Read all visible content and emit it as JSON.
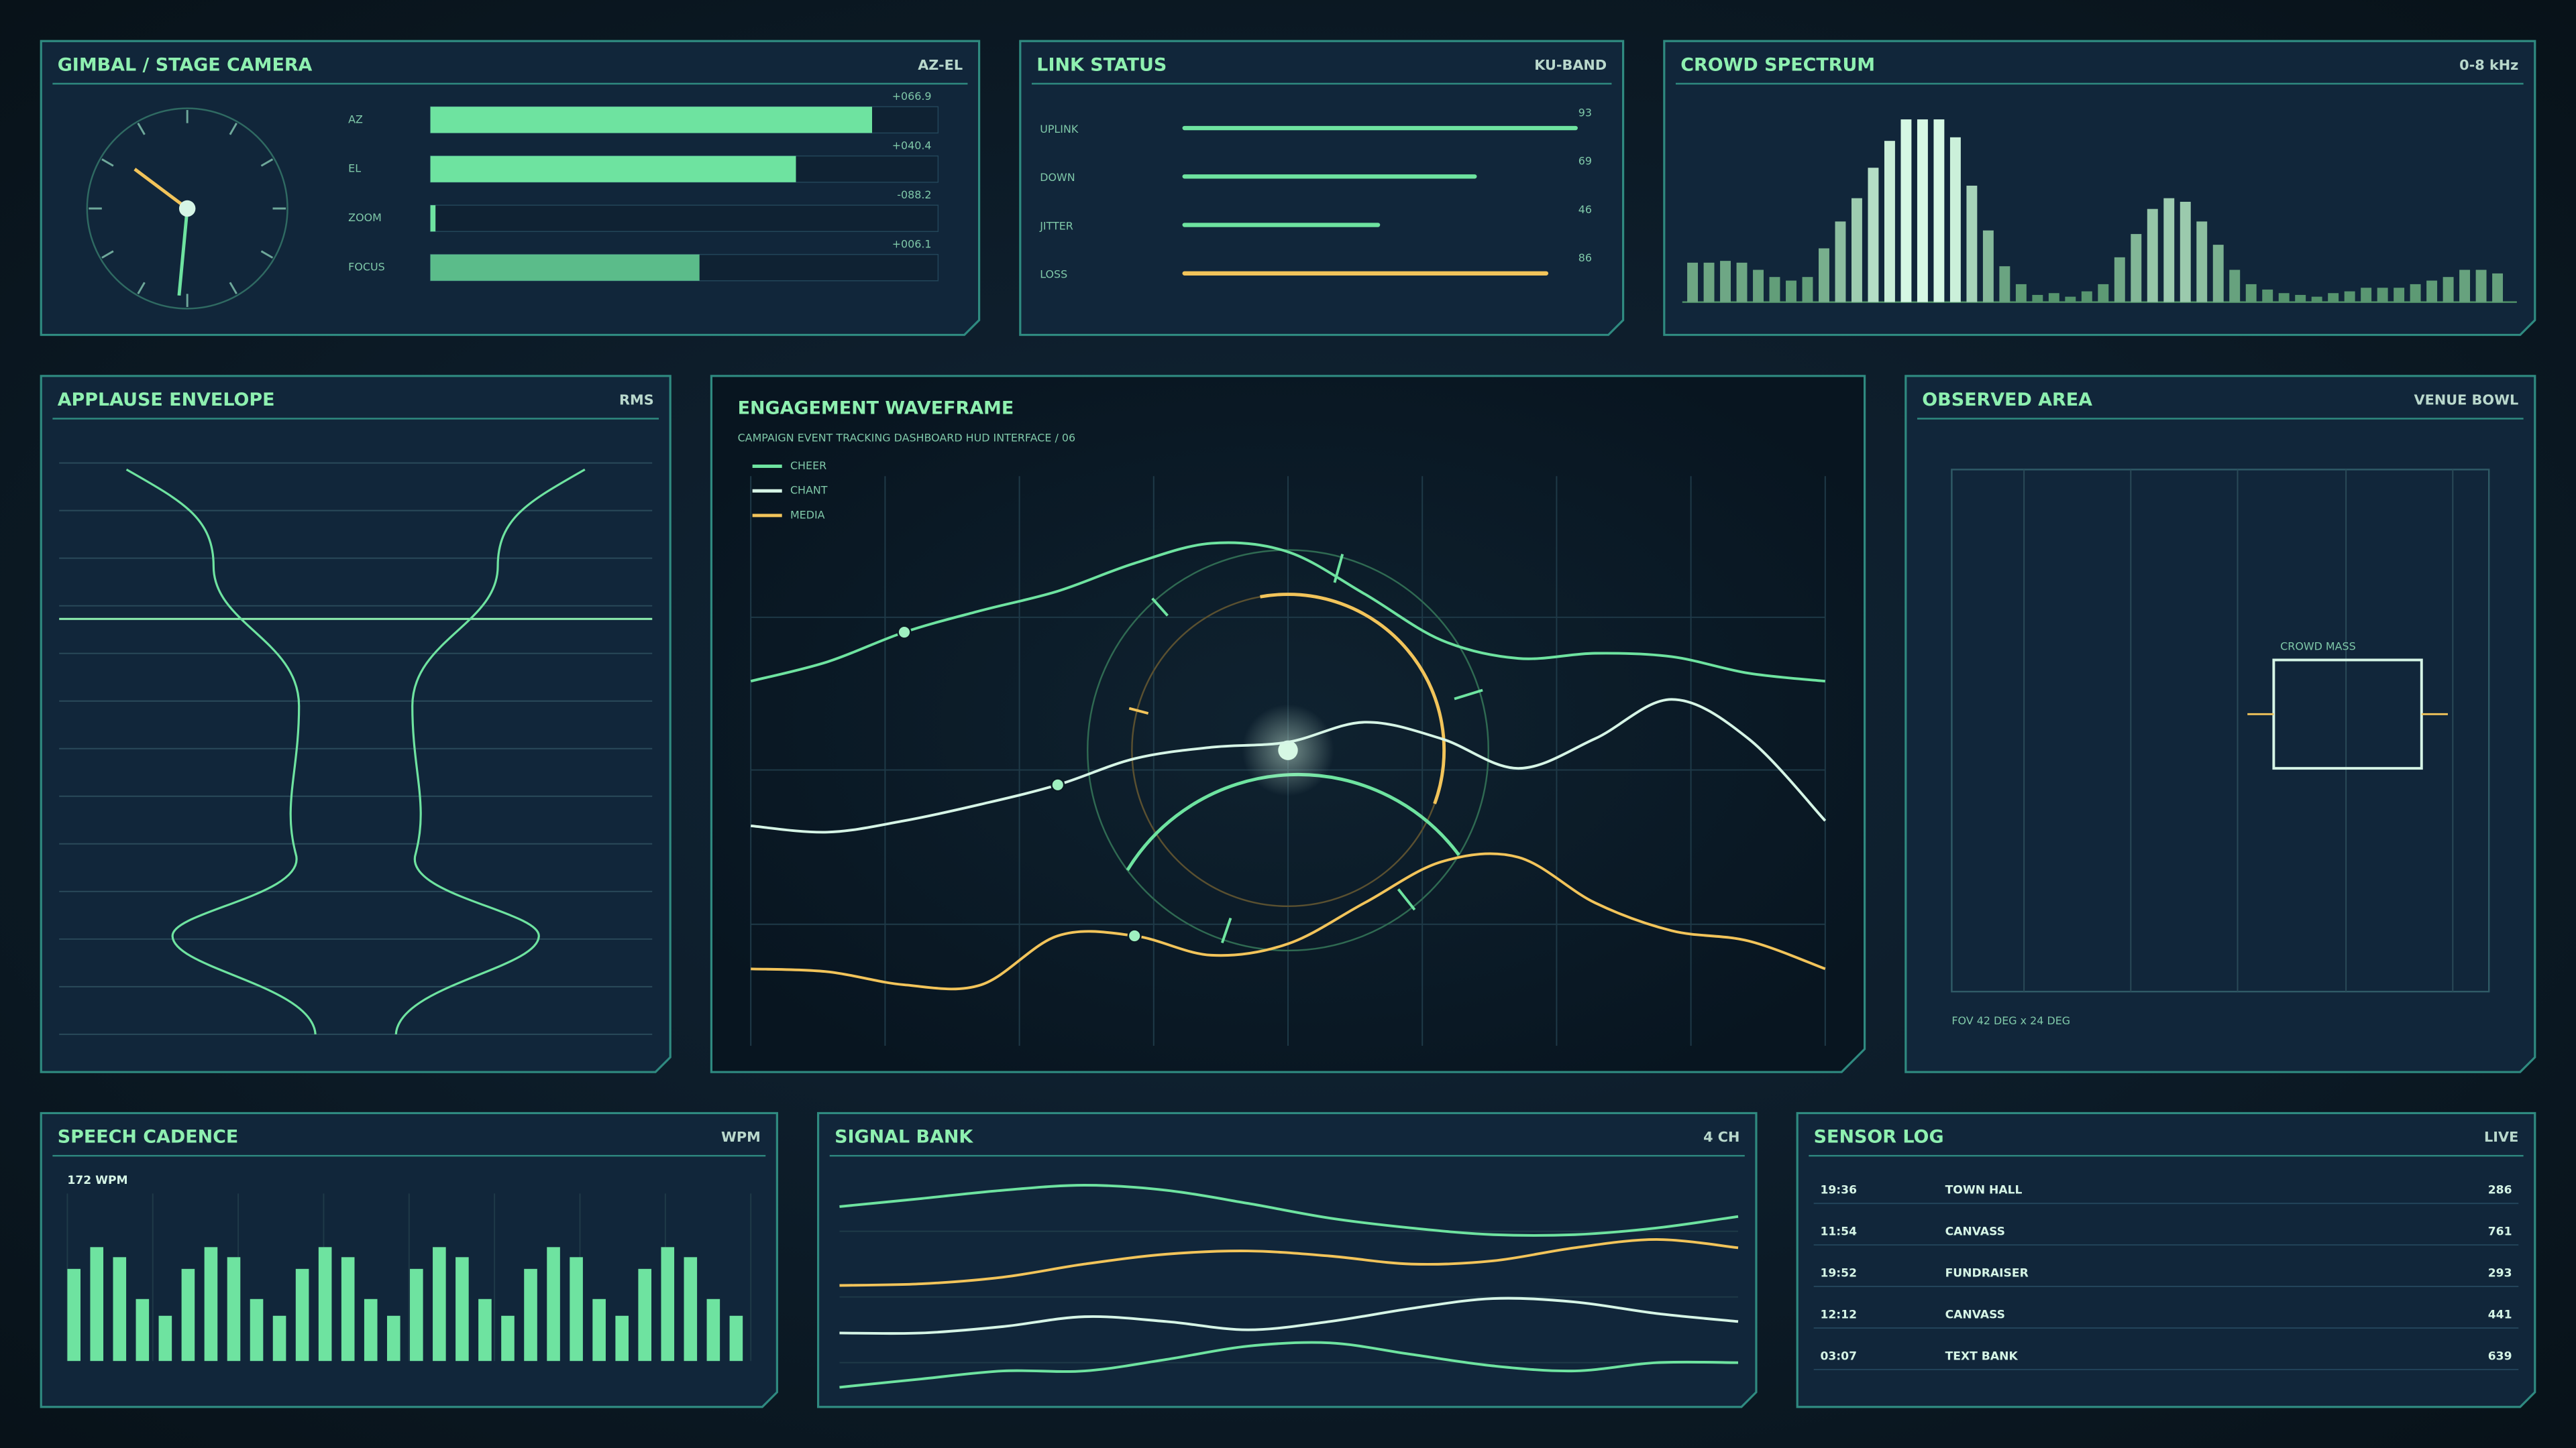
{
  "panels": {
    "gimbal": {
      "title": "GIMBAL / STAGE CAMERA",
      "tag": "AZ-EL",
      "fill_color": "#6ee3a0",
      "track_color": "#0f2233",
      "rows": [
        {
          "label": "AZ",
          "readout": "+066.9",
          "level": 87
        },
        {
          "label": "EL",
          "readout": "+040.4",
          "level": 72
        },
        {
          "label": "ZOOM",
          "readout": "-088.2",
          "level": 1
        },
        {
          "label": "FOCUS",
          "readout": "+006.1",
          "level": 53
        }
      ]
    },
    "link": {
      "title": "LINK STATUS",
      "tag": "KU-BAND",
      "xlim": [
        0,
        100
      ],
      "rows": [
        {
          "label": "UPLINK",
          "value": 93,
          "color": "#6ee3a0"
        },
        {
          "label": "DOWN",
          "value": 69,
          "color": "#6ee3a0"
        },
        {
          "label": "JITTER",
          "value": 46,
          "color": "#6ee3a0"
        },
        {
          "label": "LOSS",
          "value": 86,
          "color": "#f2c45a"
        }
      ]
    },
    "spectrum": {
      "title": "CROWD SPECTRUM",
      "tag": "0-8 kHz",
      "type": "bar",
      "ylim": [
        0,
        110
      ],
      "color_low": "#4f8f68",
      "color_high": "#d6f8e4",
      "values": [
        22,
        22,
        23,
        22,
        18,
        14,
        12,
        14,
        30,
        45,
        58,
        75,
        90,
        102,
        102,
        102,
        92,
        65,
        40,
        20,
        10,
        4,
        5,
        3,
        6,
        10,
        25,
        38,
        52,
        58,
        56,
        45,
        32,
        18,
        10,
        7,
        5,
        4,
        3,
        5,
        6,
        8,
        8,
        8,
        10,
        12,
        14,
        18,
        18,
        16
      ]
    },
    "applause": {
      "title": "APPLAUSE ENVELOPE",
      "tag": "RMS"
    },
    "engagement": {
      "title": "ENGAGEMENT WAVEFRAME",
      "subtitle": "CAMPAIGN EVENT TRACKING DASHBOARD HUD INTERFACE / 06",
      "type": "line",
      "ylim": [
        0,
        100
      ],
      "series": [
        {
          "name": "CHEER",
          "color": "#6ee3a0",
          "values": [
            64,
            67.4,
            72.6,
            76.4,
            79.8,
            84.7,
            88.2,
            86.7,
            79.3,
            71.2,
            68,
            68.9,
            68.3,
            65.4,
            64
          ]
        },
        {
          "name": "CHANT",
          "color": "#d6f5e6",
          "values": [
            38.6,
            37.5,
            39.5,
            42.4,
            45.8,
            50.4,
            52.4,
            53.3,
            56.8,
            53.9,
            48.7,
            53.9,
            60.8,
            53.9,
            39.5
          ]
        },
        {
          "name": "MEDIA",
          "color": "#f2c45a",
          "values": [
            13.5,
            13,
            10.7,
            10.7,
            19.3,
            19.3,
            15.9,
            17.9,
            25.1,
            32.3,
            33.1,
            25.1,
            20.2,
            18.4,
            13.5
          ]
        }
      ]
    },
    "area": {
      "title": "OBSERVED AREA",
      "tag": "VENUE BOWL",
      "target": "CROWD MASS",
      "fov": "FOV 42 DEG x 24 DEG"
    },
    "cadence": {
      "title": "SPEECH CADENCE",
      "tag": "WPM",
      "readout": "172 WPM",
      "type": "bar",
      "ylim": [
        0,
        100
      ],
      "color": "#6ee3a0",
      "values": [
        55,
        68,
        62,
        37,
        27,
        55,
        68,
        62,
        37,
        27,
        55,
        68,
        62,
        37,
        27,
        55,
        68,
        62,
        37,
        27,
        55,
        68,
        62,
        37,
        27,
        55,
        68,
        62,
        37,
        27
      ]
    },
    "signal": {
      "title": "SIGNAL BANK",
      "tag": "4 CH",
      "type": "line",
      "ylim": [
        0,
        100
      ],
      "series": [
        {
          "color": "#6ee3a0",
          "values": [
            83.6,
            87.1,
            90.7,
            92.9,
            90.7,
            85,
            78.6,
            74.3,
            71.4,
            71.4,
            74.3,
            79.3
          ]
        },
        {
          "color": "#f2c45a",
          "values": [
            49.3,
            50,
            52.9,
            58.6,
            62.9,
            64.3,
            62.1,
            58.6,
            60,
            65.7,
            69.3,
            65.7
          ]
        },
        {
          "color": "#d6f5e6",
          "values": [
            28.6,
            28.6,
            31.4,
            35.7,
            33.6,
            30,
            33.6,
            39.3,
            43.6,
            42.1,
            37.1,
            33.6
          ]
        },
        {
          "color": "#6ee3a0",
          "values": [
            5,
            8.6,
            12.1,
            12.1,
            17.1,
            22.9,
            24.3,
            19.3,
            14.3,
            12.1,
            15.7,
            15.7
          ]
        }
      ]
    },
    "log": {
      "title": "SENSOR LOG",
      "tag": "LIVE",
      "rows": [
        [
          "19:36",
          "TOWN HALL",
          286
        ],
        [
          "11:54",
          "CANVASS",
          761
        ],
        [
          "19:52",
          "FUNDRAISER",
          293
        ],
        [
          "12:12",
          "CANVASS",
          441
        ],
        [
          "03:07",
          "TEXT BANK",
          639
        ]
      ]
    }
  }
}
